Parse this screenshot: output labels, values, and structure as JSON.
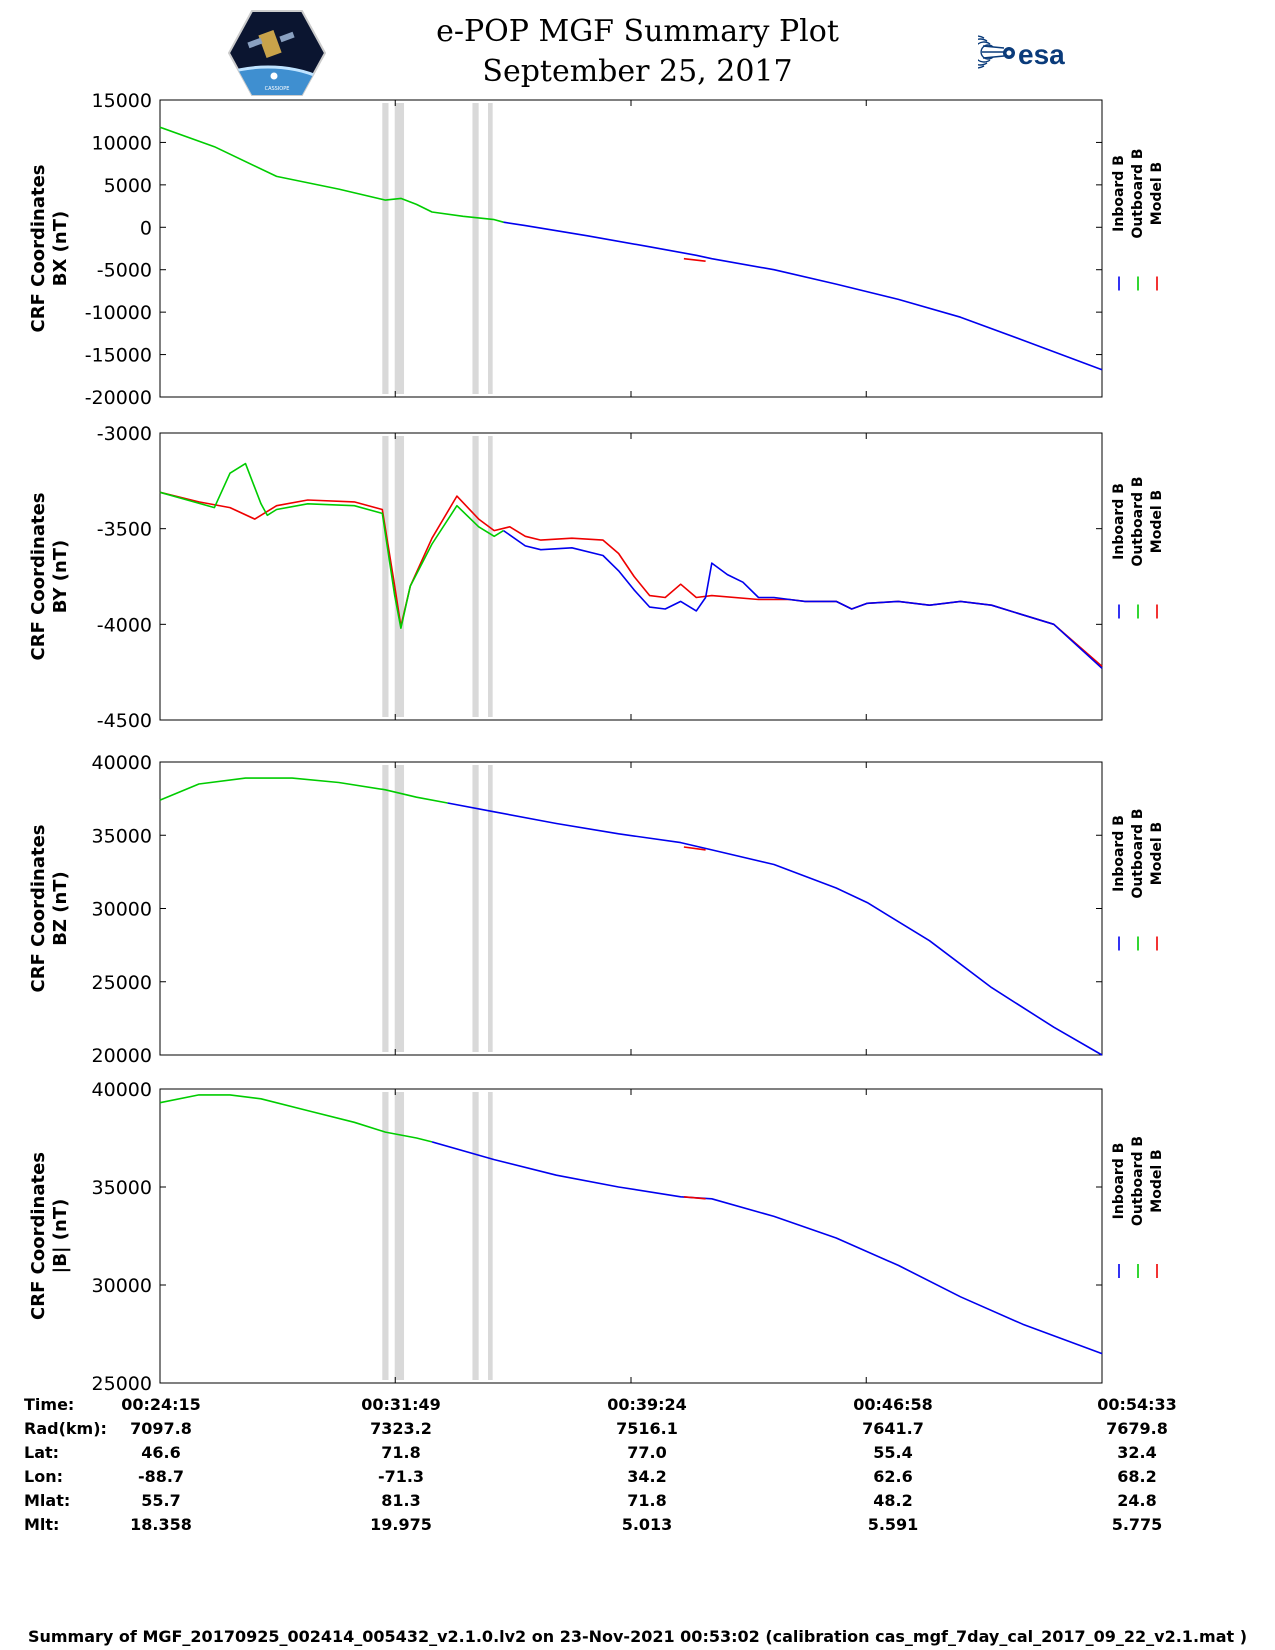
{
  "header": {
    "title": "e-POP MGF Summary Plot",
    "date": "September 25, 2017",
    "left_logo": "cassiope-mission-patch",
    "right_logo": "esa-logo",
    "right_logo_text": "esa",
    "left_logo_text": "CASSIOPE"
  },
  "colors": {
    "inboard": "#0000ee",
    "outboard": "#00cc00",
    "model": "#ee0000",
    "gap_band": "#d9d9d9"
  },
  "legend": [
    "Inboard B",
    "Outboard B",
    "Model B"
  ],
  "chart_data": [
    {
      "type": "line",
      "ylabel_line1": "CRF Coordinates",
      "ylabel_line2": "BX (nT)",
      "ylim": [
        -20000,
        15000
      ],
      "yticks": [
        "15000",
        "10000",
        "5000",
        "0",
        "-5000",
        "-10000",
        "-15000",
        "-20000"
      ],
      "gray_bands_minutes": [
        [
          31.4,
          31.6
        ],
        [
          31.8,
          32.1
        ],
        [
          34.3,
          34.5
        ],
        [
          34.8,
          34.95
        ]
      ],
      "series": [
        {
          "name": "Outboard B",
          "color_key": "outboard",
          "x_minutes": [
            24.25,
            26.0,
            28.0,
            30.0,
            31.5,
            32.0,
            32.5,
            33.0,
            34.0,
            35.0,
            35.3
          ],
          "values": [
            11800,
            9500,
            6000,
            4500,
            3200,
            3400,
            2700,
            1800,
            1300,
            900,
            600
          ]
        },
        {
          "name": "Inboard B",
          "color_key": "inboard",
          "x_minutes": [
            35.3,
            36.0,
            38.0,
            40.0,
            41.5,
            42.0,
            44.0,
            46.0,
            48.0,
            50.0,
            52.0,
            54.55
          ],
          "values": [
            600,
            200,
            -1000,
            -2300,
            -3300,
            -3700,
            -5000,
            -6700,
            -8500,
            -10600,
            -13300,
            -16800
          ]
        },
        {
          "name": "Model B",
          "color_key": "model",
          "x_minutes": [
            41.1,
            41.8
          ],
          "values": [
            -3700,
            -4000
          ]
        }
      ]
    },
    {
      "type": "line",
      "ylabel_line1": "CRF Coordinates",
      "ylabel_line2": "BY (nT)",
      "ylim": [
        -4500,
        -3000
      ],
      "yticks": [
        "-3000",
        "-3500",
        "-4000",
        "-4500"
      ],
      "gray_bands_minutes": [
        [
          31.4,
          31.6
        ],
        [
          31.8,
          32.1
        ],
        [
          34.3,
          34.5
        ],
        [
          34.8,
          34.95
        ]
      ],
      "series": [
        {
          "name": "Model B",
          "color_key": "model",
          "x_minutes": [
            24.25,
            25.5,
            26.5,
            27.3,
            28.0,
            29.0,
            30.5,
            31.4,
            31.8,
            32.0,
            32.3,
            33.0,
            33.8,
            34.5,
            35.0,
            35.5,
            36.0,
            36.5,
            37.5,
            38.5,
            39.0,
            39.5,
            40.0,
            40.5,
            41.0,
            41.5,
            42.0,
            43.5,
            44.5,
            45.0,
            46.0,
            46.5,
            47.0,
            48.0,
            49.0,
            50.0,
            51.0,
            52.0,
            53.0,
            54.55
          ],
          "values": [
            -3310,
            -3360,
            -3390,
            -3450,
            -3380,
            -3350,
            -3360,
            -3400,
            -3800,
            -4010,
            -3800,
            -3550,
            -3330,
            -3450,
            -3510,
            -3490,
            -3540,
            -3560,
            -3550,
            -3560,
            -3630,
            -3750,
            -3850,
            -3860,
            -3790,
            -3860,
            -3850,
            -3870,
            -3870,
            -3880,
            -3880,
            -3920,
            -3890,
            -3880,
            -3900,
            -3880,
            -3900,
            -3950,
            -4000,
            -4220
          ]
        },
        {
          "name": "Outboard B",
          "color_key": "outboard",
          "x_minutes": [
            24.25,
            26.0,
            26.5,
            27.0,
            27.5,
            27.7,
            28.0,
            29.0,
            30.5,
            31.4,
            31.8,
            32.0,
            32.3,
            33.0,
            33.8,
            34.5,
            35.0,
            35.3
          ],
          "values": [
            -3310,
            -3390,
            -3210,
            -3160,
            -3370,
            -3430,
            -3400,
            -3370,
            -3380,
            -3420,
            -3850,
            -4020,
            -3800,
            -3580,
            -3380,
            -3490,
            -3540,
            -3510
          ]
        },
        {
          "name": "Inboard B",
          "color_key": "inboard",
          "x_minutes": [
            35.3,
            36.0,
            36.5,
            37.5,
            38.5,
            39.0,
            39.5,
            40.0,
            40.5,
            41.0,
            41.5,
            41.8,
            42.0,
            42.5,
            43.0,
            43.5,
            44.0,
            44.5,
            45.0,
            46.0,
            46.5,
            47.0,
            48.0,
            49.0,
            50.0,
            51.0,
            52.0,
            53.0,
            54.55
          ],
          "values": [
            -3510,
            -3590,
            -3610,
            -3600,
            -3640,
            -3720,
            -3820,
            -3910,
            -3920,
            -3880,
            -3930,
            -3860,
            -3680,
            -3740,
            -3780,
            -3860,
            -3860,
            -3870,
            -3880,
            -3880,
            -3920,
            -3890,
            -3880,
            -3900,
            -3880,
            -3900,
            -3950,
            -4000,
            -4230
          ]
        }
      ]
    },
    {
      "type": "line",
      "ylabel_line1": "CRF Coordinates",
      "ylabel_line2": "BZ (nT)",
      "ylim": [
        20000,
        40000
      ],
      "yticks": [
        "40000",
        "35000",
        "30000",
        "25000",
        "20000"
      ],
      "gray_bands_minutes": [
        [
          31.4,
          31.6
        ],
        [
          31.8,
          32.1
        ],
        [
          34.3,
          34.5
        ],
        [
          34.8,
          34.95
        ]
      ],
      "series": [
        {
          "name": "Outboard B",
          "color_key": "outboard",
          "x_minutes": [
            24.25,
            25.5,
            27.0,
            28.5,
            30.0,
            31.5,
            32.5,
            33.5
          ],
          "values": [
            37400,
            38500,
            38900,
            38900,
            38600,
            38100,
            37600,
            37200
          ]
        },
        {
          "name": "Inboard B",
          "color_key": "inboard",
          "x_minutes": [
            33.5,
            35.0,
            37.0,
            39.0,
            41.0,
            42.0,
            44.0,
            46.0,
            47.0,
            49.0,
            51.0,
            53.0,
            54.55
          ],
          "values": [
            37200,
            36600,
            35800,
            35100,
            34500,
            34000,
            33000,
            31400,
            30400,
            27800,
            24600,
            21900,
            20000
          ]
        },
        {
          "name": "Model B",
          "color_key": "model",
          "x_minutes": [
            41.1,
            41.8
          ],
          "values": [
            34200,
            34000
          ]
        }
      ]
    },
    {
      "type": "line",
      "ylabel_line1": "CRF Coordinates",
      "ylabel_line2": "|B| (nT)",
      "ylim": [
        25000,
        40000
      ],
      "yticks": [
        "40000",
        "35000",
        "30000",
        "25000"
      ],
      "gray_bands_minutes": [
        [
          31.4,
          31.6
        ],
        [
          31.8,
          32.1
        ],
        [
          34.3,
          34.5
        ],
        [
          34.8,
          34.95
        ]
      ],
      "series": [
        {
          "name": "Outboard B",
          "color_key": "outboard",
          "x_minutes": [
            24.25,
            25.5,
            26.5,
            27.5,
            29.0,
            30.5,
            31.5,
            32.5,
            33.0
          ],
          "values": [
            39300,
            39700,
            39700,
            39500,
            38900,
            38300,
            37800,
            37500,
            37300
          ]
        },
        {
          "name": "Inboard B",
          "color_key": "inboard",
          "x_minutes": [
            33.0,
            35.0,
            37.0,
            39.0,
            41.0,
            42.0,
            44.0,
            46.0,
            48.0,
            50.0,
            52.0,
            54.55
          ],
          "values": [
            37300,
            36400,
            35600,
            35000,
            34500,
            34400,
            33500,
            32400,
            31000,
            29400,
            28000,
            26500
          ]
        },
        {
          "name": "Model B",
          "color_key": "model",
          "x_minutes": [
            41.1,
            41.8
          ],
          "values": [
            34500,
            34400
          ]
        }
      ]
    }
  ],
  "table": {
    "labels": [
      "Time:",
      "Rad(km):",
      "Lat:",
      "Lon:",
      "Mlat:",
      "Mlt:"
    ],
    "columns": [
      [
        "00:24:15",
        "7097.8",
        "46.6",
        "-88.7",
        "55.7",
        "18.358"
      ],
      [
        "00:31:49",
        "7323.2",
        "71.8",
        "-71.3",
        "81.3",
        "19.975"
      ],
      [
        "00:39:24",
        "7516.1",
        "77.0",
        "34.2",
        "71.8",
        "5.013"
      ],
      [
        "00:46:58",
        "7641.7",
        "55.4",
        "62.6",
        "48.2",
        "5.591"
      ],
      [
        "00:54:33",
        "7679.8",
        "32.4",
        "68.2",
        "24.8",
        "5.775"
      ]
    ]
  },
  "footer": "Summary of MGF_20170925_002414_005432_v2.1.0.lv2 on 23-Nov-2021 00:53:02 (calibration cas_mgf_7day_cal_2017_09_22_v2.1.mat )"
}
